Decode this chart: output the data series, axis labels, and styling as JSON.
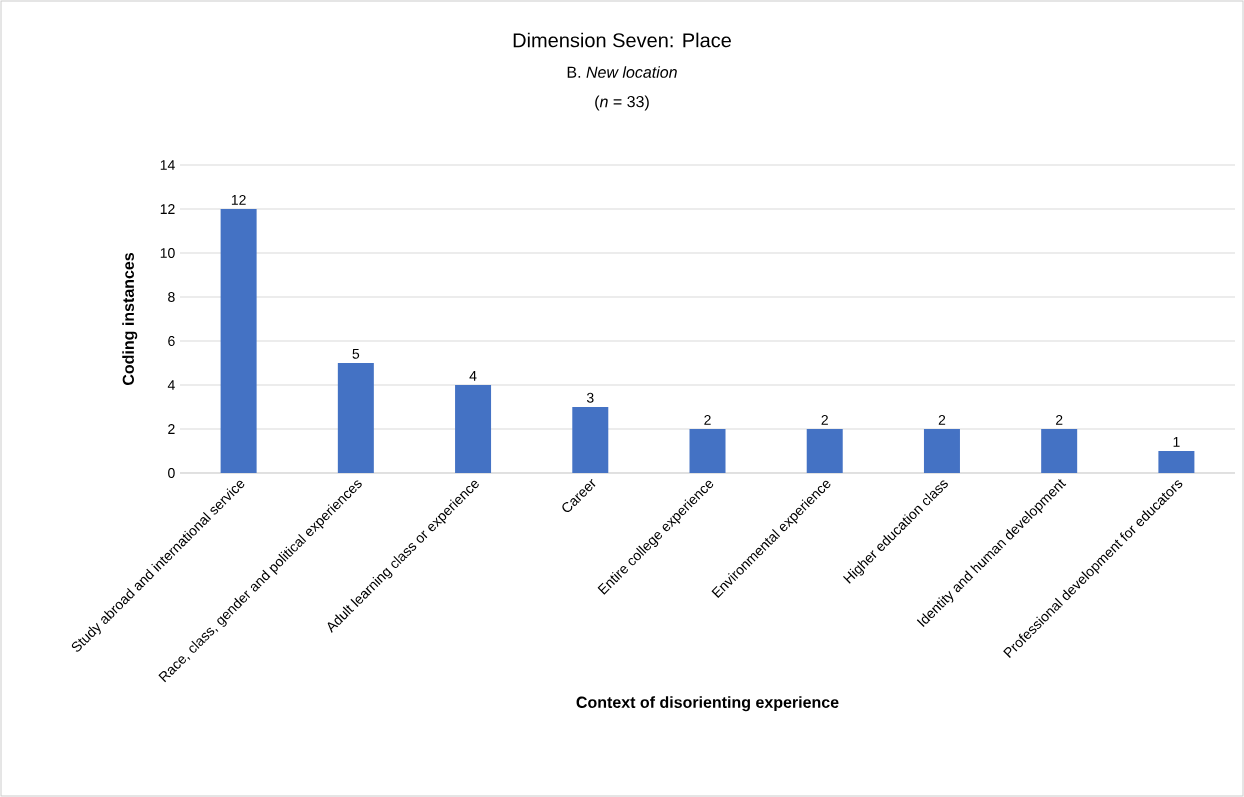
{
  "chart_data": {
    "type": "bar",
    "title": "Dimension Seven: Place",
    "subtitle": "B. *New location*",
    "annotations": [
      "(*n* = 33)"
    ],
    "xlabel": "Context of disorienting experience",
    "ylabel": "Coding instances",
    "categories": [
      "Study abroad and international service",
      "Race, class, gender and political experiences",
      "Adult learning class or experience",
      "Career",
      "Entire college experience",
      "Environmental experience",
      "Higher education class",
      "Identity and human development",
      "Professional development for educators"
    ],
    "values": [
      12,
      5,
      4,
      3,
      2,
      2,
      2,
      2,
      1
    ],
    "color": "#4472c4",
    "ylim": [
      0,
      14
    ],
    "yticks": [
      0,
      2,
      4,
      6,
      8,
      10,
      12,
      14
    ],
    "grid": "y",
    "data_labels": true
  }
}
